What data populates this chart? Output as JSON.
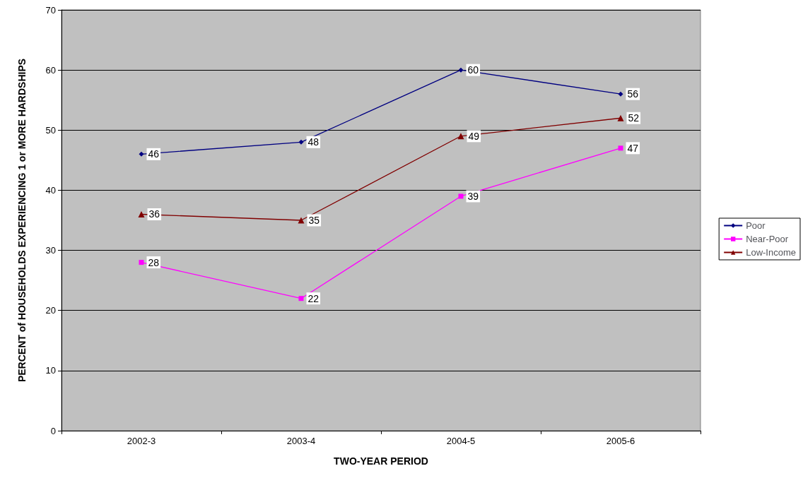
{
  "chart_data": {
    "type": "line",
    "xlabel": "TWO-YEAR PERIOD",
    "ylabel": "PERCENT of HOUSEHOLDS EXPERIENCING 1 or MORE HARDSHIPS",
    "categories": [
      "2002-3",
      "2003-4",
      "2004-5",
      "2005-6"
    ],
    "series": [
      {
        "name": "Poor",
        "color": "#000080",
        "marker": "diamond",
        "values": [
          46,
          48,
          60,
          56
        ]
      },
      {
        "name": "Near-Poor",
        "color": "#ff00ff",
        "marker": "square",
        "values": [
          28,
          22,
          39,
          47
        ]
      },
      {
        "name": "Low-Income",
        "color": "#800000",
        "marker": "triangle",
        "values": [
          36,
          35,
          49,
          52
        ]
      }
    ],
    "ylim": [
      0,
      70
    ],
    "yticks": [
      0,
      10,
      20,
      30,
      40,
      50,
      60,
      70
    ],
    "grid": "y",
    "legend": "right",
    "data_labels": true,
    "line_style": "solid"
  }
}
